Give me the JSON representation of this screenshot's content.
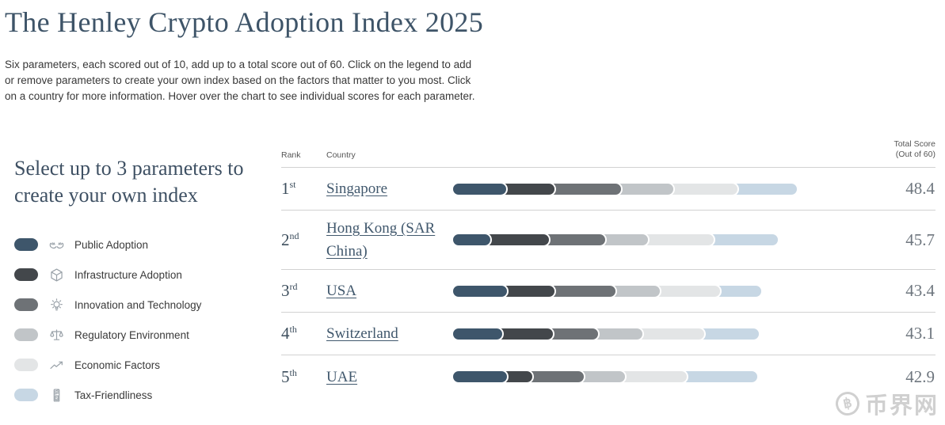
{
  "header": {
    "title": "The Henley Crypto Adoption Index 2025",
    "description": "Six parameters, each scored out of 10, add up to a total score out of 60. Click on the legend to add or remove parameters to create your own index based on the factors that matter to you most. Click on a country for more information. Hover over the chart to see individual scores for each parameter."
  },
  "legend": {
    "heading": "Select up to 3 parameters to create your own index",
    "items": [
      {
        "label": "Public Adoption",
        "color": "#3e566b",
        "icon": "hands-icon"
      },
      {
        "label": "Infrastructure Adoption",
        "color": "#43474b",
        "icon": "cube-icon"
      },
      {
        "label": "Innovation and Technology",
        "color": "#6e7276",
        "icon": "lightbulb-icon"
      },
      {
        "label": "Regulatory Environment",
        "color": "#c1c5c8",
        "icon": "scales-icon"
      },
      {
        "label": "Economic Factors",
        "color": "#e3e5e6",
        "icon": "trend-arrow-icon"
      },
      {
        "label": "Tax-Friendliness",
        "color": "#c7d7e4",
        "icon": "tax-receipt-icon"
      }
    ]
  },
  "table": {
    "headers": {
      "rank": "Rank",
      "country": "Country",
      "total_line1": "Total Score",
      "total_line2": "(Out of 60)"
    }
  },
  "chart_data": {
    "type": "bar",
    "stacked": true,
    "orientation": "horizontal",
    "xlim": [
      0,
      60
    ],
    "categories": [
      "Singapore",
      "Hong Kong (SAR China)",
      "USA",
      "Switzerland",
      "UAE"
    ],
    "ranks": [
      {
        "number": "1",
        "suffix": "st"
      },
      {
        "number": "2",
        "suffix": "nd"
      },
      {
        "number": "3",
        "suffix": "rd"
      },
      {
        "number": "4",
        "suffix": "th"
      },
      {
        "number": "5",
        "suffix": "th"
      }
    ],
    "totals": [
      "48.4",
      "45.7",
      "43.4",
      "43.1",
      "42.9"
    ],
    "series": [
      {
        "name": "Public Adoption",
        "color": "#3e566b",
        "values": [
          7.9,
          5.6,
          8.0,
          7.3,
          8.0
        ]
      },
      {
        "name": "Infrastructure Adoption",
        "color": "#43474b",
        "values": [
          6.7,
          8.2,
          6.6,
          7.1,
          3.5
        ]
      },
      {
        "name": "Innovation and Technology",
        "color": "#6e7276",
        "values": [
          9.3,
          7.8,
          8.5,
          6.3,
          7.2
        ]
      },
      {
        "name": "Regulatory Environment",
        "color": "#c1c5c8",
        "values": [
          7.3,
          6.0,
          6.2,
          6.2,
          5.8
        ]
      },
      {
        "name": "Economic Factors",
        "color": "#e3e5e6",
        "values": [
          8.9,
          9.2,
          8.4,
          8.6,
          8.6
        ]
      },
      {
        "name": "Tax-Friendliness",
        "color": "#c7d7e4",
        "values": [
          8.3,
          8.9,
          5.7,
          7.6,
          9.8
        ]
      }
    ]
  },
  "watermark": {
    "symbol": "฿",
    "text": "币界网"
  }
}
